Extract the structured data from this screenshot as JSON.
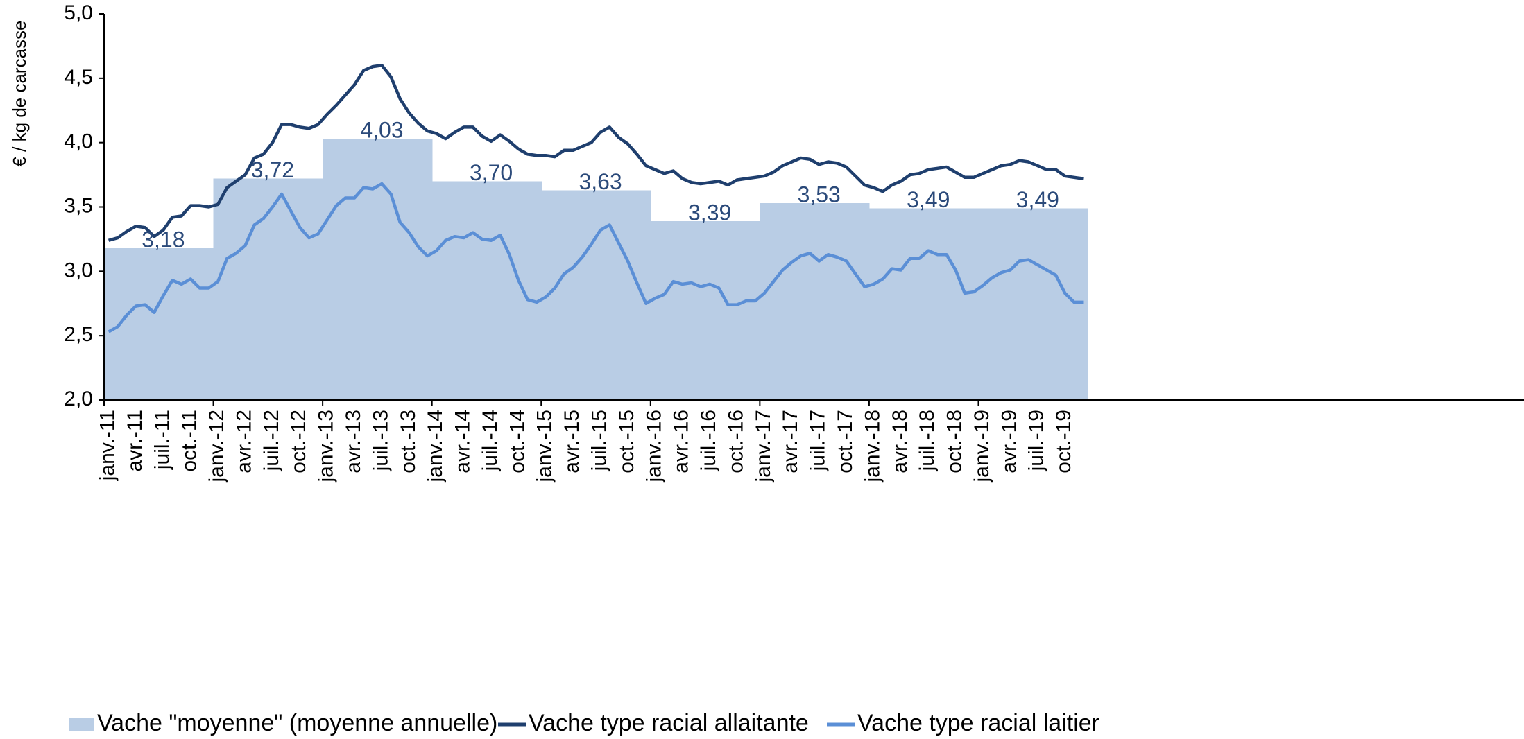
{
  "chart_data": {
    "type": "line",
    "y_label": "€ / kg de carcasse",
    "categories": [
      "janv.-11",
      null,
      null,
      "avr.-11",
      null,
      null,
      "juil.-11",
      null,
      null,
      "oct.-11",
      null,
      null,
      "janv.-12",
      null,
      null,
      "avr.-12",
      null,
      null,
      "juil.-12",
      null,
      null,
      "oct.-12",
      null,
      null,
      "janv.-13",
      null,
      null,
      "avr.-13",
      null,
      null,
      "juil.-13",
      null,
      null,
      "oct.-13",
      null,
      null,
      "janv.-14",
      null,
      null,
      "avr.-14",
      null,
      null,
      "juil.-14",
      null,
      null,
      "oct.-14",
      null,
      null,
      "janv.-15",
      null,
      null,
      "avr.-15",
      null,
      null,
      "juil.-15",
      null,
      null,
      "oct.-15",
      null,
      null,
      "janv.-16",
      null,
      null,
      "avr.-16",
      null,
      null,
      "juil.-16",
      null,
      null,
      "oct.-16",
      null,
      null,
      "janv.-17",
      null,
      null,
      "avr.-17",
      null,
      null,
      "juil.-17",
      null,
      null,
      "oct.-17",
      null,
      null,
      "janv.-18",
      null,
      null,
      "avr.-18",
      null,
      null,
      "juil.-18",
      null,
      null,
      "oct.-18",
      null,
      null,
      "janv.-19",
      null,
      null,
      "avr.-19",
      null,
      null,
      "juil.-19",
      null,
      null,
      "oct.-19",
      null,
      null
    ],
    "ylim": [
      2,
      5
    ],
    "yticks": [
      {
        "value": 2,
        "label": "2,0"
      },
      {
        "value": 2.5,
        "label": "2,5"
      },
      {
        "value": 3,
        "label": "3,0"
      },
      {
        "value": 3.5,
        "label": "3,5"
      },
      {
        "value": 4,
        "label": "4,0"
      },
      {
        "value": 4.5,
        "label": "4,5"
      },
      {
        "value": 5,
        "label": "5,0"
      }
    ],
    "series": [
      {
        "name": "Vache \"moyenne\" (moyenne annuelle)",
        "kind": "area",
        "color": "#b9cde5",
        "values": [
          3.18,
          3.18,
          3.18,
          3.18,
          3.18,
          3.18,
          3.18,
          3.18,
          3.18,
          3.18,
          3.18,
          3.18,
          3.72,
          3.72,
          3.72,
          3.72,
          3.72,
          3.72,
          3.72,
          3.72,
          3.72,
          3.72,
          3.72,
          3.72,
          4.03,
          4.03,
          4.03,
          4.03,
          4.03,
          4.03,
          4.03,
          4.03,
          4.03,
          4.03,
          4.03,
          4.03,
          3.7,
          3.7,
          3.7,
          3.7,
          3.7,
          3.7,
          3.7,
          3.7,
          3.7,
          3.7,
          3.7,
          3.7,
          3.63,
          3.63,
          3.63,
          3.63,
          3.63,
          3.63,
          3.63,
          3.63,
          3.63,
          3.63,
          3.63,
          3.63,
          3.39,
          3.39,
          3.39,
          3.39,
          3.39,
          3.39,
          3.39,
          3.39,
          3.39,
          3.39,
          3.39,
          3.39,
          3.53,
          3.53,
          3.53,
          3.53,
          3.53,
          3.53,
          3.53,
          3.53,
          3.53,
          3.53,
          3.53,
          3.53,
          3.49,
          3.49,
          3.49,
          3.49,
          3.49,
          3.49,
          3.49,
          3.49,
          3.49,
          3.49,
          3.49,
          3.49,
          3.49,
          3.49,
          3.49,
          3.49,
          3.49,
          3.49,
          3.49,
          3.49,
          3.49,
          3.49,
          3.49,
          3.49
        ],
        "value_labels": [
          null,
          null,
          null,
          null,
          null,
          null,
          "3,18",
          null,
          null,
          null,
          null,
          null,
          null,
          null,
          null,
          null,
          null,
          null,
          "3,72",
          null,
          null,
          null,
          null,
          null,
          null,
          null,
          null,
          null,
          null,
          null,
          "4,03",
          null,
          null,
          null,
          null,
          null,
          null,
          null,
          null,
          null,
          null,
          null,
          "3,70",
          null,
          null,
          null,
          null,
          null,
          null,
          null,
          null,
          null,
          null,
          null,
          "3,63",
          null,
          null,
          null,
          null,
          null,
          null,
          null,
          null,
          null,
          null,
          null,
          "3,39",
          null,
          null,
          null,
          null,
          null,
          null,
          null,
          null,
          null,
          null,
          null,
          "3,53",
          null,
          null,
          null,
          null,
          null,
          null,
          null,
          null,
          null,
          null,
          null,
          "3,49",
          null,
          null,
          null,
          null,
          null,
          null,
          null,
          null,
          null,
          null,
          null,
          "3,49",
          null,
          null,
          null,
          null,
          null
        ]
      },
      {
        "name": "Vache type racial allaitante",
        "kind": "line",
        "color": "#1f3f6e",
        "values": [
          3.24,
          3.26,
          3.31,
          3.35,
          3.34,
          3.27,
          3.32,
          3.42,
          3.43,
          3.51,
          3.51,
          3.5,
          3.52,
          3.65,
          3.7,
          3.75,
          3.88,
          3.91,
          4.0,
          4.14,
          4.14,
          4.12,
          4.11,
          4.14,
          4.22,
          4.29,
          4.37,
          4.45,
          4.56,
          4.59,
          4.6,
          4.51,
          4.34,
          4.23,
          4.15,
          4.09,
          4.07,
          4.03,
          4.08,
          4.12,
          4.12,
          4.05,
          4.01,
          4.06,
          4.01,
          3.95,
          3.91,
          3.9,
          3.9,
          3.89,
          3.94,
          3.94,
          3.97,
          4.0,
          4.08,
          4.12,
          4.04,
          3.99,
          3.91,
          3.82,
          3.79,
          3.76,
          3.78,
          3.72,
          3.69,
          3.68,
          3.69,
          3.7,
          3.67,
          3.71,
          3.72,
          3.73,
          3.74,
          3.77,
          3.82,
          3.85,
          3.88,
          3.87,
          3.83,
          3.85,
          3.84,
          3.81,
          3.74,
          3.67,
          3.65,
          3.62,
          3.67,
          3.7,
          3.75,
          3.76,
          3.79,
          3.8,
          3.81,
          3.77,
          3.73,
          3.73,
          3.76,
          3.79,
          3.82,
          3.83,
          3.86,
          3.85,
          3.82,
          3.79,
          3.79,
          3.74,
          3.73,
          3.72
        ]
      },
      {
        "name": "Vache type racial laitier",
        "kind": "line",
        "color": "#5b8fd6",
        "values": [
          2.53,
          2.57,
          2.66,
          2.73,
          2.74,
          2.68,
          2.81,
          2.93,
          2.9,
          2.94,
          2.87,
          2.87,
          2.92,
          3.1,
          3.14,
          3.2,
          3.36,
          3.41,
          3.5,
          3.6,
          3.47,
          3.34,
          3.26,
          3.29,
          3.4,
          3.51,
          3.57,
          3.57,
          3.65,
          3.64,
          3.68,
          3.6,
          3.38,
          3.3,
          3.19,
          3.12,
          3.16,
          3.24,
          3.27,
          3.26,
          3.3,
          3.25,
          3.24,
          3.28,
          3.13,
          2.93,
          2.78,
          2.76,
          2.8,
          2.87,
          2.98,
          3.03,
          3.11,
          3.21,
          3.32,
          3.36,
          3.22,
          3.08,
          2.91,
          2.75,
          2.79,
          2.82,
          2.92,
          2.9,
          2.91,
          2.88,
          2.9,
          2.87,
          2.74,
          2.74,
          2.77,
          2.77,
          2.83,
          2.92,
          3.01,
          3.07,
          3.12,
          3.14,
          3.08,
          3.13,
          3.11,
          3.08,
          2.98,
          2.88,
          2.9,
          2.94,
          3.02,
          3.01,
          3.1,
          3.1,
          3.16,
          3.13,
          3.13,
          3.01,
          2.83,
          2.84,
          2.89,
          2.95,
          2.99,
          3.01,
          3.08,
          3.09,
          3.05,
          3.01,
          2.97,
          2.83,
          2.76,
          2.76
        ]
      }
    ]
  }
}
